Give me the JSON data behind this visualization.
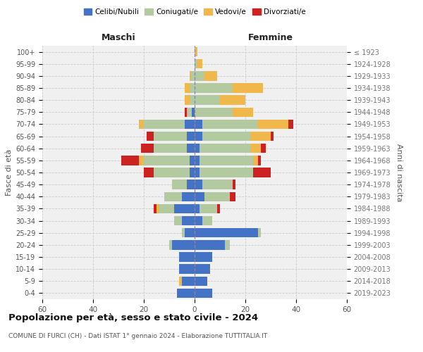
{
  "age_groups": [
    "0-4",
    "5-9",
    "10-14",
    "15-19",
    "20-24",
    "25-29",
    "30-34",
    "35-39",
    "40-44",
    "45-49",
    "50-54",
    "55-59",
    "60-64",
    "65-69",
    "70-74",
    "75-79",
    "80-84",
    "85-89",
    "90-94",
    "95-99",
    "100+"
  ],
  "birth_years": [
    "2019-2023",
    "2014-2018",
    "2009-2013",
    "2004-2008",
    "1999-2003",
    "1994-1998",
    "1989-1993",
    "1984-1988",
    "1979-1983",
    "1974-1978",
    "1969-1973",
    "1964-1968",
    "1959-1963",
    "1954-1958",
    "1949-1953",
    "1944-1948",
    "1939-1943",
    "1934-1938",
    "1929-1933",
    "1924-1928",
    "≤ 1923"
  ],
  "colors": {
    "celibi": "#4472c4",
    "coniugati": "#b3c9a0",
    "vedovi": "#f0b84a",
    "divorziati": "#cc2222"
  },
  "male": {
    "celibi": [
      7,
      5,
      6,
      6,
      9,
      4,
      5,
      8,
      5,
      3,
      2,
      2,
      3,
      3,
      4,
      1,
      0,
      0,
      0,
      0,
      0
    ],
    "coniugati": [
      0,
      0,
      0,
      0,
      1,
      1,
      3,
      6,
      7,
      6,
      14,
      18,
      13,
      13,
      16,
      2,
      2,
      2,
      1,
      0,
      0
    ],
    "vedovi": [
      0,
      1,
      0,
      0,
      0,
      0,
      0,
      1,
      0,
      0,
      0,
      2,
      0,
      0,
      2,
      0,
      2,
      2,
      1,
      0,
      0
    ],
    "divorziati": [
      0,
      0,
      0,
      0,
      0,
      0,
      0,
      1,
      0,
      0,
      4,
      7,
      5,
      3,
      0,
      1,
      0,
      0,
      0,
      0,
      0
    ]
  },
  "female": {
    "celibi": [
      7,
      5,
      6,
      7,
      12,
      25,
      3,
      2,
      4,
      3,
      2,
      2,
      2,
      3,
      3,
      0,
      0,
      0,
      0,
      0,
      0
    ],
    "coniugati": [
      0,
      0,
      0,
      0,
      2,
      1,
      4,
      7,
      10,
      12,
      21,
      21,
      20,
      19,
      22,
      15,
      10,
      15,
      4,
      1,
      0
    ],
    "vedovi": [
      0,
      0,
      0,
      0,
      0,
      0,
      0,
      0,
      0,
      0,
      0,
      2,
      4,
      8,
      12,
      8,
      10,
      12,
      5,
      2,
      1
    ],
    "divorziati": [
      0,
      0,
      0,
      0,
      0,
      0,
      0,
      1,
      2,
      1,
      7,
      1,
      2,
      1,
      2,
      0,
      0,
      0,
      0,
      0,
      0
    ]
  },
  "title": "Popolazione per età, sesso e stato civile - 2024",
  "subtitle": "COMUNE DI FURCI (CH) - Dati ISTAT 1° gennaio 2024 - Elaborazione TUTTITALIA.IT",
  "xlabel_left": "Maschi",
  "xlabel_right": "Femmine",
  "ylabel_left": "Fasce di età",
  "ylabel_right": "Anni di nascita",
  "xlim": 60,
  "legend_labels": [
    "Celibi/Nubili",
    "Coniugati/e",
    "Vedovi/e",
    "Divorziati/e"
  ],
  "bg_color": "#ffffff",
  "grid_color": "#cccccc"
}
